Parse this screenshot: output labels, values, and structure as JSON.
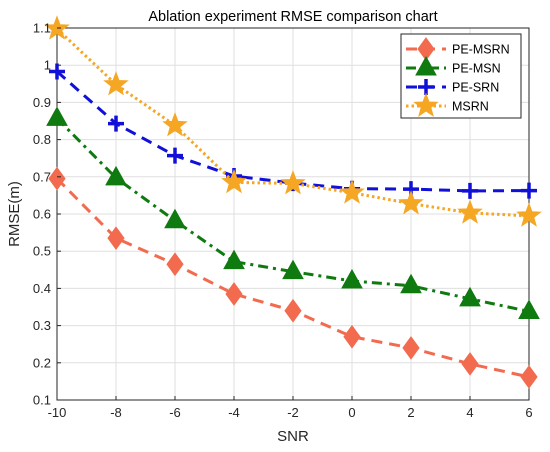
{
  "chart_data": {
    "type": "line",
    "title": "Ablation experiment RMSE comparison chart",
    "xlabel": "SNR",
    "ylabel": "RMSE(m)",
    "x": [
      -10,
      -8,
      -6,
      -4,
      -2,
      0,
      2,
      4,
      6
    ],
    "xlim": [
      -10,
      6
    ],
    "ylim": [
      0.1,
      1.1
    ],
    "xticks": [
      "-10",
      "-8",
      "-6",
      "-4",
      "-2",
      "0",
      "2",
      "4",
      "6"
    ],
    "yticks": [
      "0.1",
      "0.2",
      "0.3",
      "0.4",
      "0.5",
      "0.6",
      "0.7",
      "0.8",
      "0.9",
      "1",
      "1.1"
    ],
    "grid": true,
    "legend_position": "top-right",
    "series": [
      {
        "name": "PE-MSRN",
        "color": "#f26b4f",
        "line_style": "dashed",
        "marker": "diamond",
        "values": [
          0.695,
          0.535,
          0.465,
          0.385,
          0.34,
          0.27,
          0.24,
          0.197,
          0.162
        ]
      },
      {
        "name": "PE-MSN",
        "color": "#0f7a0f",
        "line_style": "dashdot",
        "marker": "triangle",
        "values": [
          0.857,
          0.697,
          0.582,
          0.472,
          0.445,
          0.42,
          0.407,
          0.372,
          0.338
        ]
      },
      {
        "name": "PE-SRN",
        "color": "#1010d8",
        "line_style": "dashed",
        "marker": "plus",
        "values": [
          0.983,
          0.843,
          0.757,
          0.702,
          0.683,
          0.668,
          0.667,
          0.662,
          0.663
        ]
      },
      {
        "name": "MSRN",
        "color": "#f5a623",
        "line_style": "dotted",
        "marker": "star",
        "values": [
          1.098,
          0.948,
          0.838,
          0.685,
          0.682,
          0.657,
          0.628,
          0.603,
          0.595
        ]
      }
    ]
  }
}
